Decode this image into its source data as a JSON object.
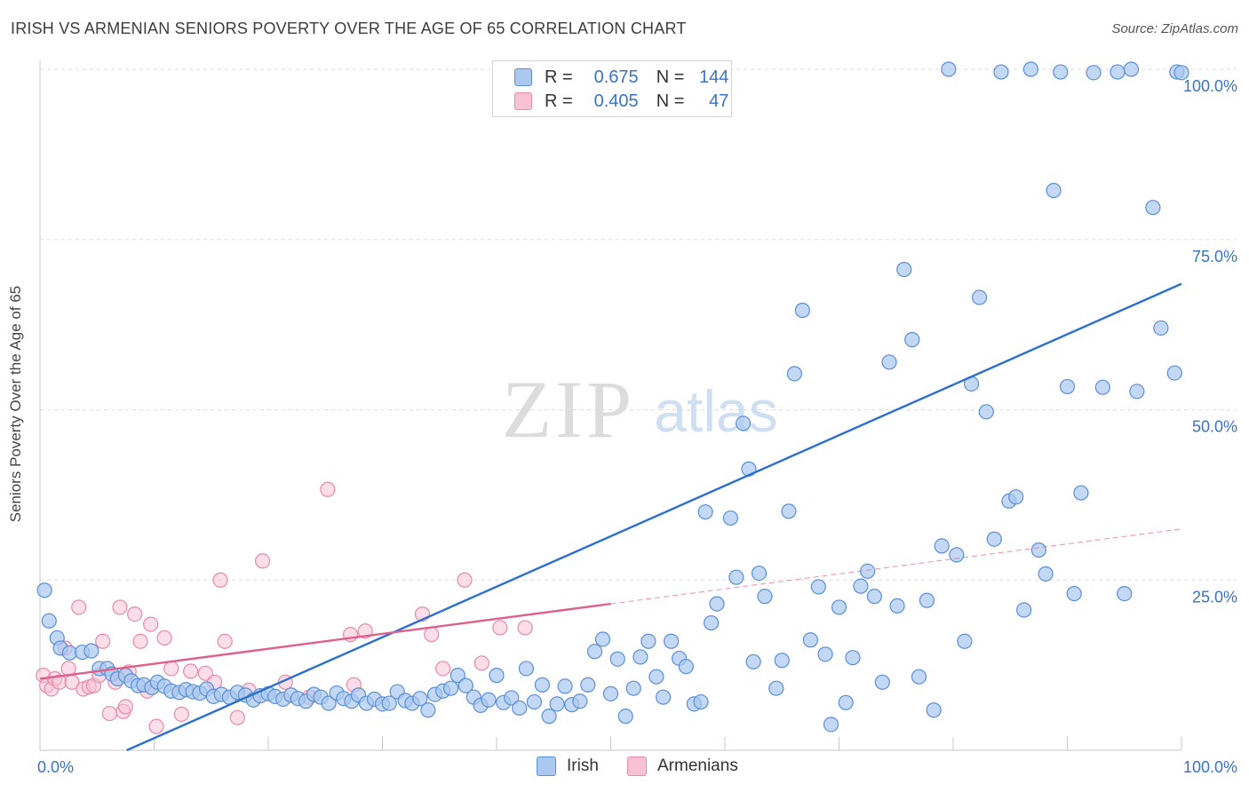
{
  "header": {
    "title": "IRISH VS ARMENIAN SENIORS POVERTY OVER THE AGE OF 65 CORRELATION CHART",
    "source": "Source: ZipAtlas.com"
  },
  "watermark": {
    "zip": "ZIP",
    "atlas": "atlas"
  },
  "legend_top": {
    "irish": {
      "r_label": "R =",
      "r_value": "0.675",
      "n_label": "N =",
      "n_value": "144"
    },
    "armenians": {
      "r_label": "R =",
      "r_value": "0.405",
      "n_label": "N =",
      "n_value": "47"
    }
  },
  "colors": {
    "irish_fill": "#aac8f0",
    "irish_stroke": "#5b8fd6",
    "irish_line": "#2b6fcf",
    "armenian_fill": "#f7c3d3",
    "armenian_stroke": "#e88aa8",
    "armenian_line": "#e0608c",
    "axis_text": "#3a72c8",
    "grid": "#dddddd"
  },
  "chart_data": {
    "type": "scatter",
    "title": "IRISH VS ARMENIAN SENIORS POVERTY OVER THE AGE OF 65 CORRELATION CHART",
    "xlabel": "",
    "ylabel": "Seniors Poverty Over the Age of 65",
    "xlim": [
      0,
      100
    ],
    "ylim": [
      0,
      100
    ],
    "x_tick_labels": [
      "0.0%",
      "100.0%"
    ],
    "y_tick_labels": [
      "100.0%",
      "75.0%",
      "50.0%",
      "25.0%"
    ],
    "y_ticks": [
      100,
      75,
      50,
      25
    ],
    "grid": true,
    "legend_position": "bottom",
    "series": [
      {
        "name": "Irish",
        "r": 0.675,
        "n": 144,
        "trend": {
          "x": [
            7.6,
            100
          ],
          "y": [
            0,
            68.5
          ]
        },
        "points": [
          [
            0.4,
            23.5
          ],
          [
            0.8,
            19
          ],
          [
            1.5,
            16.5
          ],
          [
            1.8,
            15
          ],
          [
            2.6,
            14.3
          ],
          [
            3.7,
            14.4
          ],
          [
            4.5,
            14.6
          ],
          [
            5.2,
            12
          ],
          [
            5.9,
            12
          ],
          [
            6.3,
            11.2
          ],
          [
            6.8,
            10.5
          ],
          [
            7.5,
            11
          ],
          [
            8,
            10.2
          ],
          [
            8.6,
            9.5
          ],
          [
            9.1,
            9.6
          ],
          [
            9.8,
            9.2
          ],
          [
            10.3,
            10
          ],
          [
            10.9,
            9.4
          ],
          [
            11.5,
            8.7
          ],
          [
            12.2,
            8.5
          ],
          [
            12.8,
            8.9
          ],
          [
            13.4,
            8.6
          ],
          [
            14,
            8.4
          ],
          [
            14.6,
            9
          ],
          [
            15.2,
            7.9
          ],
          [
            15.9,
            8.2
          ],
          [
            16.6,
            7.8
          ],
          [
            17.3,
            8.5
          ],
          [
            18,
            8.1
          ],
          [
            18.7,
            7.4
          ],
          [
            19.3,
            8
          ],
          [
            20,
            8.3
          ],
          [
            20.6,
            7.9
          ],
          [
            21.3,
            7.5
          ],
          [
            22,
            8.1
          ],
          [
            22.6,
            7.6
          ],
          [
            23.3,
            7.2
          ],
          [
            24,
            8.2
          ],
          [
            24.6,
            7.8
          ],
          [
            25.3,
            6.9
          ],
          [
            26,
            8.4
          ],
          [
            26.6,
            7.6
          ],
          [
            27.3,
            7.2
          ],
          [
            27.9,
            8.1
          ],
          [
            28.6,
            6.9
          ],
          [
            29.3,
            7.5
          ],
          [
            30,
            6.8
          ],
          [
            30.6,
            6.9
          ],
          [
            31.3,
            8.6
          ],
          [
            32,
            7.3
          ],
          [
            32.6,
            6.9
          ],
          [
            33.3,
            7.6
          ],
          [
            34,
            5.9
          ],
          [
            34.6,
            8.2
          ],
          [
            35.3,
            8.7
          ],
          [
            36,
            9.1
          ],
          [
            36.6,
            11
          ],
          [
            37.3,
            9.5
          ],
          [
            38,
            7.8
          ],
          [
            38.6,
            6.6
          ],
          [
            39.3,
            7.4
          ],
          [
            40,
            11
          ],
          [
            40.6,
            7
          ],
          [
            41.3,
            7.7
          ],
          [
            42,
            6.2
          ],
          [
            42.6,
            12
          ],
          [
            43.3,
            7.1
          ],
          [
            44,
            9.6
          ],
          [
            44.6,
            5
          ],
          [
            45.3,
            6.8
          ],
          [
            46,
            9.4
          ],
          [
            46.6,
            6.7
          ],
          [
            47.3,
            7.2
          ],
          [
            48,
            9.6
          ],
          [
            48.6,
            14.5
          ],
          [
            49.3,
            16.3
          ],
          [
            50,
            8.3
          ],
          [
            50.6,
            13.4
          ],
          [
            51.3,
            5
          ],
          [
            52,
            9.1
          ],
          [
            52.6,
            13.7
          ],
          [
            53.3,
            16
          ],
          [
            54,
            10.8
          ],
          [
            54.6,
            7.8
          ],
          [
            55.3,
            16
          ],
          [
            56,
            13.5
          ],
          [
            56.6,
            12.3
          ],
          [
            57.3,
            6.8
          ],
          [
            57.9,
            7.1
          ],
          [
            58.3,
            35
          ],
          [
            58.8,
            18.7
          ],
          [
            59.3,
            21.5
          ],
          [
            60.5,
            34.1
          ],
          [
            61,
            25.4
          ],
          [
            61.6,
            48
          ],
          [
            62.1,
            41.3
          ],
          [
            62.5,
            13
          ],
          [
            63,
            26
          ],
          [
            63.5,
            22.6
          ],
          [
            64.5,
            9.1
          ],
          [
            65,
            13.2
          ],
          [
            65.6,
            35.1
          ],
          [
            66.1,
            55.3
          ],
          [
            66.8,
            64.6
          ],
          [
            67.5,
            16.2
          ],
          [
            68.2,
            24
          ],
          [
            68.8,
            14.1
          ],
          [
            69.3,
            3.8
          ],
          [
            70,
            21
          ],
          [
            70.6,
            7
          ],
          [
            71.2,
            13.6
          ],
          [
            71.9,
            24.1
          ],
          [
            72.5,
            26.3
          ],
          [
            73.1,
            22.6
          ],
          [
            73.8,
            10
          ],
          [
            74.4,
            57
          ],
          [
            75.1,
            21.2
          ],
          [
            75.7,
            70.6
          ],
          [
            76.4,
            60.3
          ],
          [
            77,
            10.8
          ],
          [
            77.7,
            22
          ],
          [
            78.3,
            5.9
          ],
          [
            79,
            30
          ],
          [
            79.6,
            100
          ],
          [
            80.3,
            28.7
          ],
          [
            81,
            16
          ],
          [
            81.6,
            53.8
          ],
          [
            82.3,
            66.5
          ],
          [
            82.9,
            49.7
          ],
          [
            83.6,
            31
          ],
          [
            84.2,
            99.6
          ],
          [
            84.9,
            36.6
          ],
          [
            85.5,
            37.2
          ],
          [
            86.2,
            20.6
          ],
          [
            86.8,
            100
          ],
          [
            87.5,
            29.4
          ],
          [
            88.1,
            25.9
          ],
          [
            88.8,
            82.2
          ],
          [
            89.4,
            99.6
          ],
          [
            90,
            53.4
          ],
          [
            90.6,
            23
          ],
          [
            91.2,
            37.8
          ],
          [
            92.3,
            99.5
          ],
          [
            93.1,
            53.3
          ],
          [
            94.4,
            99.6
          ],
          [
            95,
            23
          ],
          [
            95.6,
            100
          ],
          [
            96.1,
            52.7
          ],
          [
            97.5,
            79.7
          ],
          [
            98.2,
            62
          ],
          [
            99.4,
            55.4
          ],
          [
            99.6,
            99.6
          ],
          [
            100,
            99.5
          ]
        ]
      },
      {
        "name": "Armenians",
        "r": 0.405,
        "n": 47,
        "trend": {
          "x": [
            0,
            100
          ],
          "y": [
            10.5,
            32.5
          ]
        },
        "trend_solid_until_x": 50,
        "points": [
          [
            0.3,
            11
          ],
          [
            0.6,
            9.5
          ],
          [
            1,
            9
          ],
          [
            1.3,
            10.5
          ],
          [
            1.7,
            10
          ],
          [
            2.2,
            15
          ],
          [
            2.5,
            12
          ],
          [
            2.8,
            10
          ],
          [
            3.4,
            21
          ],
          [
            3.8,
            9
          ],
          [
            4.3,
            9.3
          ],
          [
            4.7,
            9.5
          ],
          [
            5.2,
            11
          ],
          [
            5.5,
            16
          ],
          [
            6.1,
            5.4
          ],
          [
            6.6,
            10
          ],
          [
            7,
            21
          ],
          [
            7.3,
            5.7
          ],
          [
            7.5,
            6.4
          ],
          [
            7.8,
            11.5
          ],
          [
            8.3,
            20
          ],
          [
            8.8,
            16
          ],
          [
            9.4,
            8.7
          ],
          [
            9.7,
            18.5
          ],
          [
            10.2,
            3.5
          ],
          [
            10.9,
            16.5
          ],
          [
            11.5,
            12
          ],
          [
            12.4,
            5.3
          ],
          [
            13.2,
            11.6
          ],
          [
            14.5,
            11.3
          ],
          [
            15.3,
            10
          ],
          [
            15.8,
            25
          ],
          [
            16.2,
            16
          ],
          [
            17.3,
            4.8
          ],
          [
            18.3,
            8.8
          ],
          [
            19.5,
            27.8
          ],
          [
            21.5,
            10
          ],
          [
            23.6,
            7.8
          ],
          [
            25.2,
            38.3
          ],
          [
            27.2,
            17
          ],
          [
            27.5,
            9.6
          ],
          [
            28.5,
            17.5
          ],
          [
            33.5,
            20
          ],
          [
            34.3,
            17
          ],
          [
            35.3,
            12
          ],
          [
            37.2,
            25
          ],
          [
            38.7,
            12.8
          ],
          [
            40.3,
            18
          ],
          [
            42.5,
            18
          ]
        ]
      }
    ]
  }
}
